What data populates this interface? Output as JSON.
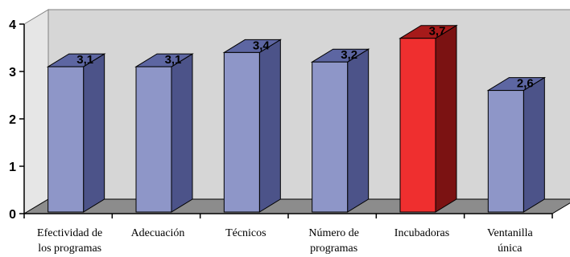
{
  "chart_data": {
    "type": "bar",
    "categories": [
      [
        "Efectividad de",
        "los programas"
      ],
      [
        "Adecuación"
      ],
      [
        "Técnicos"
      ],
      [
        "Número de",
        "programas"
      ],
      [
        "Incubadoras"
      ],
      [
        "Ventanilla",
        "única"
      ]
    ],
    "values": [
      3.1,
      3.1,
      3.4,
      3.2,
      3.7,
      2.6
    ],
    "value_labels": [
      "3,1",
      "3,1",
      "3,4",
      "3,2",
      "3,7",
      "2,6"
    ],
    "y_ticks": [
      0,
      1,
      2,
      3,
      4
    ],
    "y_tick_labels": [
      "0",
      "1",
      "2",
      "3",
      "4"
    ],
    "ylim": [
      0,
      4
    ],
    "title": "",
    "xlabel": "",
    "ylabel": "",
    "grid": false,
    "legend": "none",
    "style": "3d-column",
    "highlight_index": 4,
    "colors": {
      "bar_front": "#8e96c8",
      "bar_side": "#4c5389",
      "bar_top": "#5d66a2",
      "highlight_front": "#ef2f2f",
      "highlight_side": "#7b1212",
      "highlight_top": "#a61a1a",
      "back_wall": "#d6d6d6",
      "floor": "#8c8c8c",
      "edge": "#000000"
    }
  }
}
